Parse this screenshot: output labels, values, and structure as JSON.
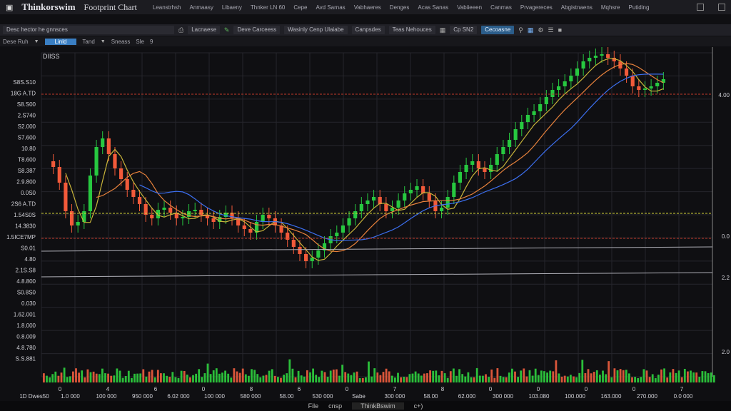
{
  "titlebar": {
    "app_name": "Thinkorswim",
    "app_subtitle": "Footprint Chart",
    "menu": [
      "Leanstrhsh",
      "Anmaasy",
      "Libaeny",
      "Thnker LN 60",
      "Cepe",
      "Avd Sarnas",
      "Vabhaeres",
      "Denges",
      "Acas Sanas",
      "Vabiieeen",
      "Canmas",
      "Prvagereces",
      "Abgistnaens",
      "Mqhsre",
      "Putiding"
    ]
  },
  "toolbar": {
    "items": [
      "Desc hector he gnnsces",
      "Lacnaese",
      "Deve Carceess",
      "Wasinly Cenp Ulaiabe",
      "Canpsdes",
      "Teas Nehouces",
      "Cp SN2",
      "Cecoasne"
    ]
  },
  "toolbar2": {
    "items": [
      "Dese Ruh",
      "Linld",
      "Tand",
      "Sneass",
      "Sle",
      "9"
    ]
  },
  "chart": {
    "symbol": "DIISS",
    "price_labels": [
      "S8S.S10",
      "18G A.TD",
      "S8.S00",
      "2.S740",
      "S2.000",
      "S7.600",
      "10.80",
      "T8.600",
      "S8.387",
      "2.9.800",
      "0.0S0",
      "2S6 A.TD",
      "1.54S0S",
      "14.3830",
      "1.5ICE7MP",
      "S0.01",
      "4.80",
      "2.1S.S8",
      "4.8.800",
      "S0.8S0",
      "0.030",
      "1.62.001",
      "1.8.000",
      "0.8.009",
      "4.8.780",
      "S.S.881"
    ],
    "right_labels": [
      "4.00",
      "0.0",
      "2.2",
      "2.0"
    ],
    "x_labels": [
      "0",
      "4",
      "6",
      "0",
      "8",
      "6",
      "0",
      "7",
      "8",
      "0",
      "0",
      "0",
      "0",
      "7"
    ],
    "x_values": [
      "1D Dwes50",
      "1.0 000",
      "100 000",
      "950 000",
      "6.02 000",
      "100 000",
      "580 000",
      "58.00",
      "530 000",
      "Sabe",
      "300 000",
      "58.00",
      "62.000",
      "300 000",
      "103.080",
      "100.000",
      "163.000",
      "270.000",
      "0.0 000"
    ],
    "up_color": "#27c840",
    "down_color": "#f25a3a",
    "ma_colors": [
      "#c8b43a",
      "#e8823c",
      "#3c6ff0"
    ]
  },
  "footer": {
    "label": "File",
    "mode": "cnsp",
    "app": "ThinkBswim",
    "extra": "c+)"
  }
}
